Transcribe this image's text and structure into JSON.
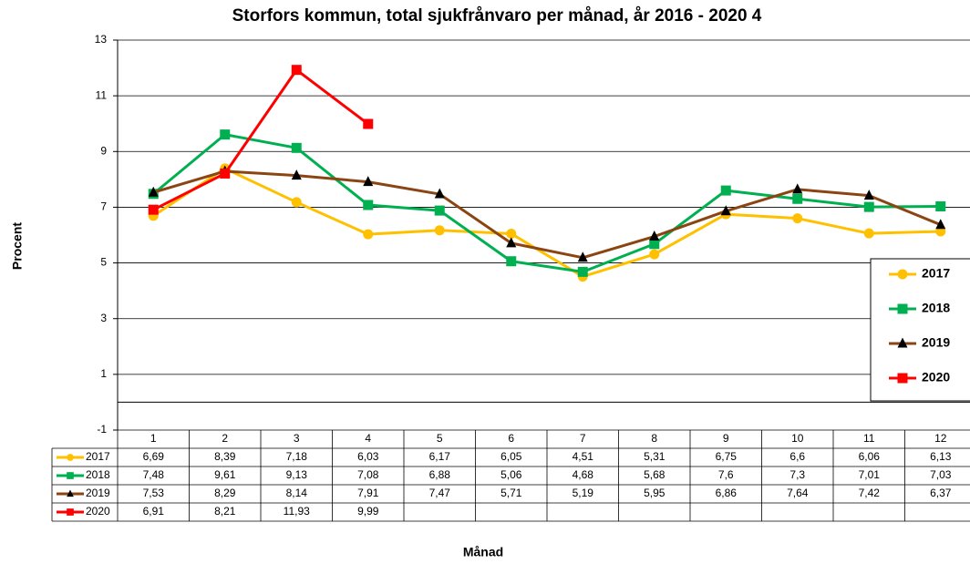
{
  "chart_data": {
    "type": "line",
    "title": "Storfors kommun, total sjukfrånvaro per månad, år 2016 - 2020 4",
    "ylabel": "Procent",
    "xlabel": "Månad",
    "categories": [
      "1",
      "2",
      "3",
      "4",
      "5",
      "6",
      "7",
      "8",
      "9",
      "10",
      "11",
      "12"
    ],
    "series": [
      {
        "name": "2017",
        "color": "#FFC000",
        "marker": "circle",
        "marker_color": "#FFC000",
        "values": [
          6.69,
          8.39,
          7.18,
          6.03,
          6.17,
          6.05,
          4.51,
          5.31,
          6.75,
          6.6,
          6.06,
          6.13
        ],
        "value_labels": [
          "6,69",
          "8,39",
          "7,18",
          "6,03",
          "6,17",
          "6,05",
          "4,51",
          "5,31",
          "6,75",
          "6,6",
          "6,06",
          "6,13"
        ]
      },
      {
        "name": "2018",
        "color": "#00B050",
        "marker": "square",
        "marker_color": "#00B050",
        "values": [
          7.48,
          9.61,
          9.13,
          7.08,
          6.88,
          5.06,
          4.68,
          5.68,
          7.6,
          7.3,
          7.01,
          7.03
        ],
        "value_labels": [
          "7,48",
          "9,61",
          "9,13",
          "7,08",
          "6,88",
          "5,06",
          "4,68",
          "5,68",
          "7,6",
          "7,3",
          "7,01",
          "7,03"
        ]
      },
      {
        "name": "2019",
        "color": "#8B4513",
        "marker": "triangle",
        "marker_color": "#000000",
        "values": [
          7.53,
          8.29,
          8.14,
          7.91,
          7.47,
          5.71,
          5.19,
          5.95,
          6.86,
          7.64,
          7.42,
          6.37
        ],
        "value_labels": [
          "7,53",
          "8,29",
          "8,14",
          "7,91",
          "7,47",
          "5,71",
          "5,19",
          "5,95",
          "6,86",
          "7,64",
          "7,42",
          "6,37"
        ]
      },
      {
        "name": "2020",
        "color": "#FF0000",
        "marker": "square",
        "marker_color": "#FF0000",
        "values": [
          6.91,
          8.21,
          11.93,
          9.99,
          null,
          null,
          null,
          null,
          null,
          null,
          null,
          null
        ],
        "value_labels": [
          "6,91",
          "8,21",
          "11,93",
          "9,99",
          null,
          null,
          null,
          null,
          null,
          null,
          null,
          null
        ]
      }
    ],
    "ylim": [
      -1,
      13
    ],
    "yticks": [
      -1,
      1,
      3,
      5,
      7,
      9,
      11,
      13
    ],
    "grid": true,
    "legend": "right",
    "data_table": true
  }
}
